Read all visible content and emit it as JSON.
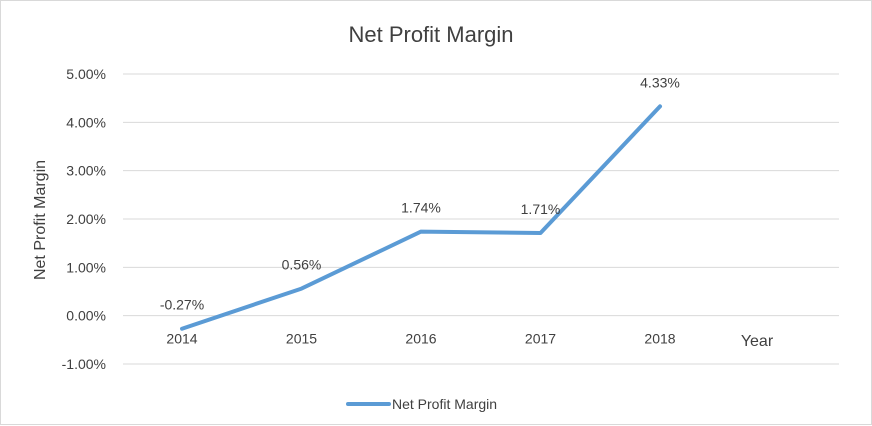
{
  "chart_data": {
    "type": "line",
    "title": "Net Profit Margin",
    "xlabel": "Year",
    "ylabel": "Net Profit Margin",
    "categories": [
      "2014",
      "2015",
      "2016",
      "2017",
      "2018"
    ],
    "series": [
      {
        "name": "Net Profit Margin",
        "values": [
          -0.27,
          0.56,
          1.74,
          1.71,
          4.33
        ],
        "labels": [
          "-0.27%",
          "0.56%",
          "1.74%",
          "1.71%",
          "4.33%"
        ],
        "color": "#5b9bd5"
      }
    ],
    "ylim": [
      -1,
      5
    ],
    "yticks": [
      5,
      4,
      3,
      2,
      1,
      0,
      -1
    ],
    "ytick_labels": [
      "5.00%",
      "4.00%",
      "3.00%",
      "2.00%",
      "1.00%",
      "0.00%",
      "-1.00%"
    ],
    "grid": true,
    "legend_position": "bottom",
    "gridline_color": "#d9d9d9"
  }
}
